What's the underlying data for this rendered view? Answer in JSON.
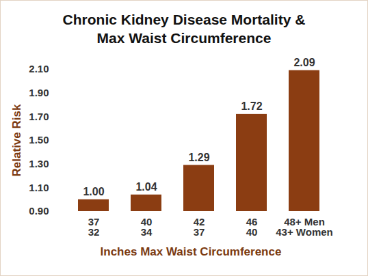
{
  "chart_data": {
    "type": "bar",
    "title": "Chronic Kidney Disease Mortality &\nMax Waist Circumference",
    "x_label": "Inches Max Waist Circumference",
    "y_label": "Relative Risk",
    "categories": [
      "37\n32",
      "40\n34",
      "42\n37",
      "46\n40",
      "48+ Men\n43+ Women"
    ],
    "values": [
      1.0,
      1.04,
      1.29,
      1.72,
      2.09
    ],
    "value_labels": [
      "1.00",
      "1.04",
      "1.29",
      "1.72",
      "2.09"
    ],
    "color": "#8b3d12",
    "ylim": [
      0.9,
      2.1
    ],
    "yticks": [
      {
        "value": 0.9,
        "label": "0.90"
      },
      {
        "value": 1.1,
        "label": "1.10"
      },
      {
        "value": 1.3,
        "label": "1.30"
      },
      {
        "value": 1.5,
        "label": "1.50"
      },
      {
        "value": 1.7,
        "label": "1.70"
      },
      {
        "value": 1.9,
        "label": "1.90"
      },
      {
        "value": 2.1,
        "label": "2.10"
      }
    ],
    "grid": false,
    "data_labels": true
  }
}
